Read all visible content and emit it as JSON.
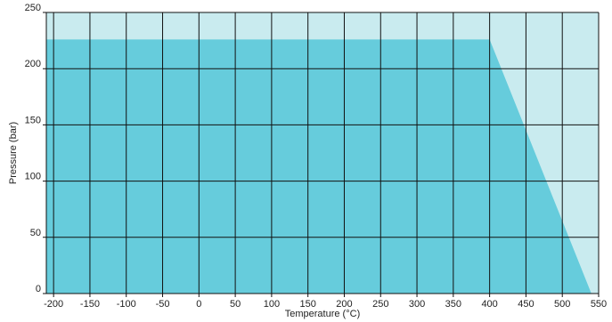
{
  "chart_data": {
    "type": "area",
    "title": "",
    "xlabel": "Temperature (°C)",
    "ylabel": "Pressure (bar)",
    "xlim": [
      -210,
      550
    ],
    "ylim": [
      0,
      250
    ],
    "xticks": [
      -200,
      -150,
      -100,
      -50,
      0,
      50,
      100,
      150,
      200,
      250,
      300,
      350,
      400,
      450,
      500,
      550
    ],
    "yticks": [
      0,
      50,
      100,
      150,
      200,
      250
    ],
    "grid": true,
    "x": [
      -210,
      400,
      540
    ],
    "y": [
      226,
      226,
      0
    ],
    "colors": {
      "background_fill": "#c9ebef",
      "area_fill": "#66ccdc",
      "grid": "#111111"
    }
  }
}
